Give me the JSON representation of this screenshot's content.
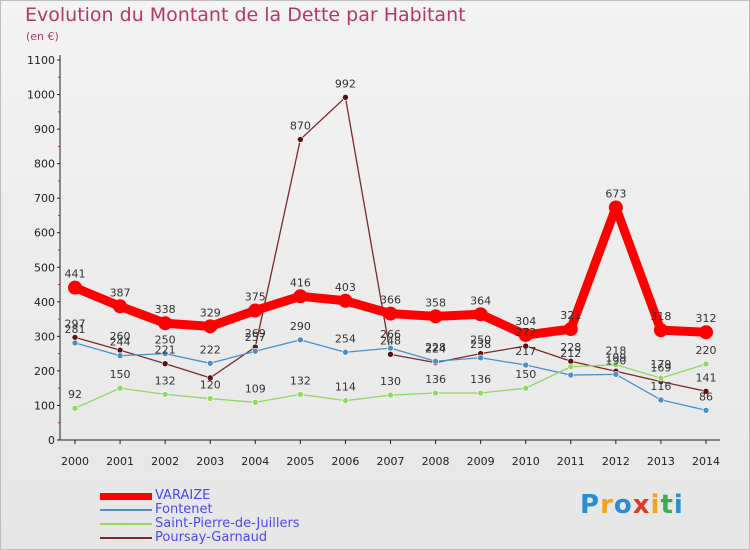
{
  "title": "Evolution du Montant de la Dette par Habitant",
  "subtitle": "(en €)",
  "logo": {
    "text": "Proxiti",
    "colors": [
      "#2a8fd0",
      "#f2a21b",
      "#2a8fd0",
      "#e23a2a",
      "#f2a21b",
      "#3cae4c",
      "#2a8fd0"
    ]
  },
  "chart_data": {
    "type": "line",
    "x": [
      "2000",
      "2001",
      "2002",
      "2003",
      "2004",
      "2005",
      "2006",
      "2007",
      "2008",
      "2009",
      "2010",
      "2011",
      "2012",
      "2013",
      "2014"
    ],
    "ylim": [
      0,
      1100
    ],
    "yticks": [
      "0",
      "100",
      "200",
      "300",
      "400",
      "500",
      "600",
      "700",
      "800",
      "900",
      "1000",
      "1100"
    ],
    "grid": false,
    "legend": "bottom-left",
    "series": [
      {
        "name": "VARAIZE",
        "color": "#ff0000",
        "values": [
          441,
          387,
          338,
          329,
          375,
          416,
          403,
          366,
          358,
          364,
          304,
          321,
          673,
          318,
          312
        ],
        "labels": [
          "441",
          "387",
          "338",
          "329",
          "375",
          "416",
          "403",
          "366",
          "358",
          "364",
          "304",
          "321",
          "673",
          "318",
          "312"
        ]
      },
      {
        "name": "Fontenet",
        "color": "#4a90c8",
        "values": [
          281,
          244,
          250,
          222,
          257,
          290,
          254,
          266,
          228,
          238,
          217,
          188,
          190,
          116,
          86
        ],
        "labels": [
          "281",
          "244",
          "250",
          "222",
          "257",
          "290",
          "254",
          "266",
          "228",
          "238",
          "217",
          "",
          "190",
          "116",
          "86"
        ]
      },
      {
        "name": "Saint-Pierre-de-Juillers",
        "color": "#90d860",
        "values": [
          92,
          150,
          132,
          120,
          109,
          132,
          114,
          130,
          136,
          136,
          150,
          212,
          218,
          179,
          220
        ],
        "labels": [
          "92",
          "150",
          "132",
          "120",
          "109",
          "132",
          "114",
          "130",
          "136",
          "136",
          "150",
          "212",
          "218",
          "179",
          "220"
        ]
      },
      {
        "name": "Poursay-Garnaud",
        "color": "#7a2a2a",
        "values": [
          297,
          260,
          221,
          180,
          269,
          870,
          992,
          248,
          224,
          250,
          272,
          228,
          199,
          169,
          141
        ],
        "labels": [
          "297",
          "260",
          "221",
          "",
          "269",
          "870",
          "992",
          "248",
          "224",
          "250",
          "272",
          "228",
          "199",
          "169",
          "141"
        ]
      }
    ]
  }
}
